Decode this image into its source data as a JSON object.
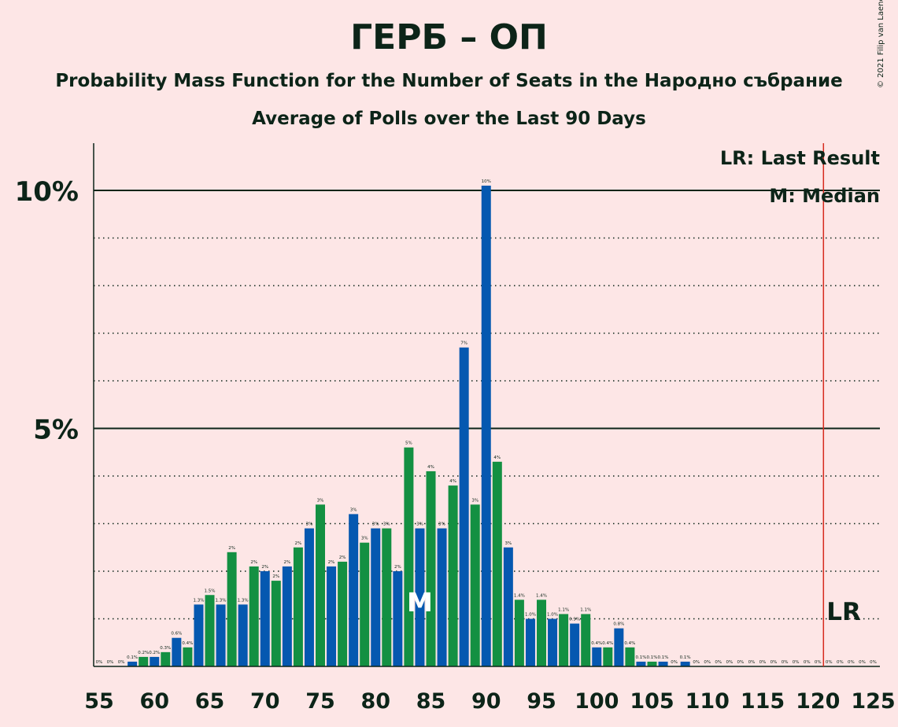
{
  "title": "ГЕРБ – ОП",
  "subtitle": "Probability Mass Function for the Number of Seats in the Народно събрание",
  "subtitle2": "Average of Polls over the Last 90 Days",
  "copyright": "© 2021 Filip van Laenen",
  "legend": {
    "lr": "LR: Last Result",
    "median": "M: Median"
  },
  "markers": {
    "median_label": "M",
    "median_seat": 84,
    "lr_label": "LR",
    "lr_seat": 121
  },
  "colors": {
    "blue": "#0558B0",
    "green": "#139042",
    "lr_line": "#D62B1E",
    "text": "#0C2418",
    "background": "#FDE6E6"
  },
  "chart_data": {
    "type": "bar",
    "xlabel": "",
    "ylabel": "",
    "xlim": [
      55,
      125
    ],
    "ylim": [
      0,
      11
    ],
    "yticks": [
      {
        "value": 5,
        "label": "5%"
      },
      {
        "value": 10,
        "label": "10%"
      }
    ],
    "xticks": [
      55,
      60,
      65,
      70,
      75,
      80,
      85,
      90,
      95,
      100,
      105,
      110,
      115,
      120,
      125
    ],
    "grid": "dotted at every 1%, solid at 5% and 10%",
    "legend_position": "top-right",
    "seats": [
      55,
      56,
      57,
      58,
      59,
      60,
      61,
      62,
      63,
      64,
      65,
      66,
      67,
      68,
      69,
      70,
      71,
      72,
      73,
      74,
      75,
      76,
      77,
      78,
      79,
      80,
      81,
      82,
      83,
      84,
      85,
      86,
      87,
      88,
      89,
      90,
      91,
      92,
      93,
      94,
      95,
      96,
      97,
      98,
      99,
      100,
      101,
      102,
      103,
      104,
      105,
      106,
      107,
      108,
      109,
      110,
      111,
      112,
      113,
      114,
      115,
      116,
      117,
      118,
      119,
      120,
      121,
      122,
      123,
      124,
      125
    ],
    "values": [
      0,
      0,
      0,
      0.1,
      0.2,
      0.2,
      0.3,
      0.6,
      0.4,
      1.3,
      1.5,
      1.3,
      2.4,
      1.3,
      2.1,
      2,
      1.8,
      2.1,
      2.5,
      2.9,
      3.4,
      2.1,
      2.2,
      3.2,
      2.6,
      2.9,
      2.9,
      2.0,
      4.6,
      2.9,
      4.1,
      2.9,
      3.8,
      6.7,
      3.4,
      10.1,
      4.3,
      2.5,
      1.4,
      1.0,
      1.4,
      1.0,
      1.1,
      0.9,
      1.1,
      0.4,
      0.4,
      0.8,
      0.4,
      0.1,
      0.1,
      0.1,
      0,
      0.1,
      0,
      0,
      0,
      0,
      0,
      0,
      0,
      0,
      0,
      0,
      0,
      0,
      0,
      0,
      0,
      0,
      0
    ],
    "labels": [
      "0%",
      "0%",
      "0%",
      "0.1%",
      "0.2%",
      "0.2%",
      "0.3%",
      "0.6%",
      "0.4%",
      "1.3%",
      "1.5%",
      "1.3%",
      "2%",
      "1.3%",
      "2%",
      "2%",
      "2%",
      "2%",
      "2%",
      "3%",
      "3%",
      "2%",
      "2%",
      "3%",
      "3%",
      "3%",
      "3%",
      "2%",
      "5%",
      "3%",
      "4%",
      "3%",
      "4%",
      "7%",
      "3%",
      "10%",
      "4%",
      "3%",
      "1.4%",
      "1.0%",
      "1.4%",
      "1.0%",
      "1.1%",
      "0.9%",
      "1.1%",
      "0.4%",
      "0.4%",
      "0.8%",
      "0.4%",
      "0.1%",
      "0.1%",
      "0.1%",
      "0%",
      "0.1%",
      "0%",
      "0%",
      "0%",
      "0%",
      "0%",
      "0%",
      "0%",
      "0%",
      "0%",
      "0%",
      "0%",
      "0%",
      "0%",
      "0%",
      "0%",
      "0%",
      "0%"
    ]
  }
}
